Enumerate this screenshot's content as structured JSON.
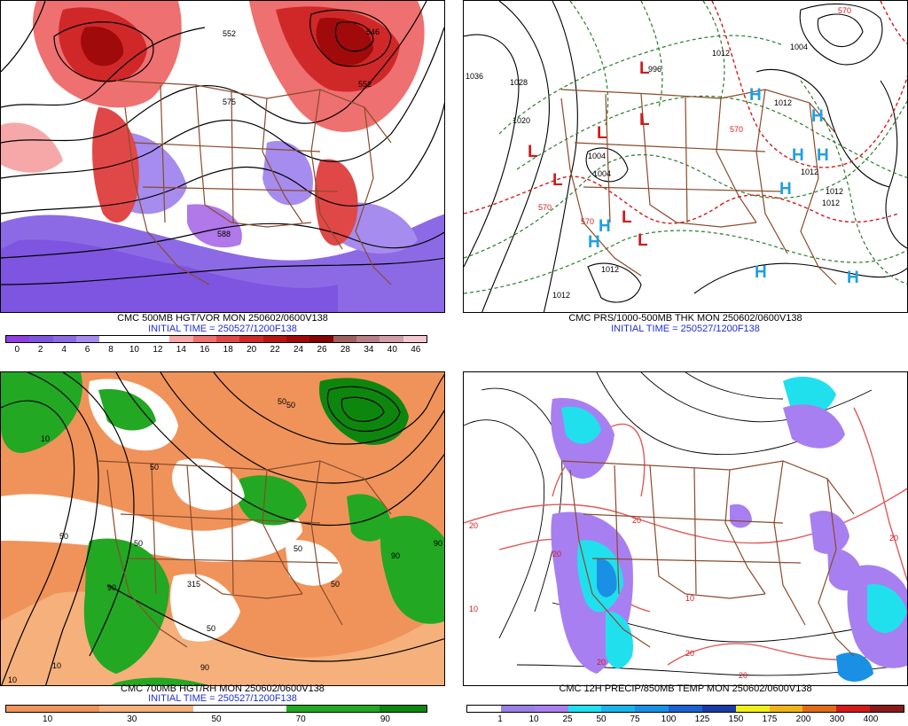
{
  "panels": [
    {
      "id": "p1",
      "title": "CMC 500MB HGT/VOR MON 250602/0600V138",
      "init": "INITIAL TIME = 250527/1200F138",
      "colors": [
        "#8f3fe0",
        "#7e55e0",
        "#8c6ae5",
        "#a58cee",
        "#ffffff",
        "#ffffff",
        "#ffffff",
        "#f6a8a8",
        "#ee7070",
        "#e04848",
        "#d02828",
        "#b81414",
        "#a00a0a",
        "#860404",
        "#a06060",
        "#b87f86",
        "#cf9ea8",
        "#f3c7d0"
      ],
      "ticks": [
        "0",
        "2",
        "4",
        "6",
        "8",
        "10",
        "12",
        "14",
        "16",
        "18",
        "20",
        "22",
        "24",
        "26",
        "28",
        "34",
        "40",
        "46"
      ],
      "contour_labels": [
        "552",
        "575",
        "588",
        "546",
        "552"
      ]
    },
    {
      "id": "p2",
      "title": "CMC PRS/1000-500MB THK MON 250602/0600V138",
      "init": "INITIAL TIME = 250527/1200F138",
      "contour_labels": [
        "1036",
        "1028",
        "1020",
        "1004",
        "1004",
        "1012",
        "1012",
        "1012",
        "996",
        "1012",
        "1004",
        "1012",
        "1012",
        "1012",
        "570",
        "570",
        "570",
        "570"
      ],
      "highs": [
        "H",
        "H",
        "H",
        "H",
        "H",
        "H",
        "H",
        "H",
        "H"
      ],
      "lows": [
        "L",
        "L",
        "L",
        "L",
        "L",
        "L",
        "L"
      ]
    },
    {
      "id": "p3",
      "title": "CMC 700MB HGT/RH MON 250602/0600V138",
      "init": "INITIAL TIME = 250527/1200F138",
      "colors": [
        "#f0935a",
        "#f0935a",
        "#f6b07c",
        "#f6b07c",
        "#ffffff",
        "#ffffff",
        "#22a822",
        "#22a822",
        "#0d860d"
      ],
      "ticks": [
        "10",
        "30",
        "50",
        "70",
        "90"
      ],
      "contour_labels": [
        "10",
        "50",
        "50",
        "50",
        "50",
        "50",
        "50",
        "90",
        "90",
        "90",
        "10",
        "10",
        "50",
        "50",
        "90",
        "315"
      ]
    },
    {
      "id": "p4",
      "title": "CMC 12H PRECIP/850MB TEMP MON 250602/0600V138",
      "colors": [
        "#ffffff",
        "#9a7fe6",
        "#a87ff0",
        "#20e0ee",
        "#1ab4ea",
        "#1a90e4",
        "#1a62d2",
        "#1a3aa8",
        "#f0f01a",
        "#f0b41a",
        "#e06c1a",
        "#d21a1a",
        "#8a1a1a"
      ],
      "ticks": [
        "1",
        "10",
        "25",
        "50",
        "75",
        "100",
        "125",
        "150",
        "175",
        "200",
        "300",
        "400"
      ],
      "contour_labels": [
        "20",
        "20",
        "20",
        "20",
        "20",
        "20",
        "10",
        "10",
        "20"
      ]
    }
  ]
}
